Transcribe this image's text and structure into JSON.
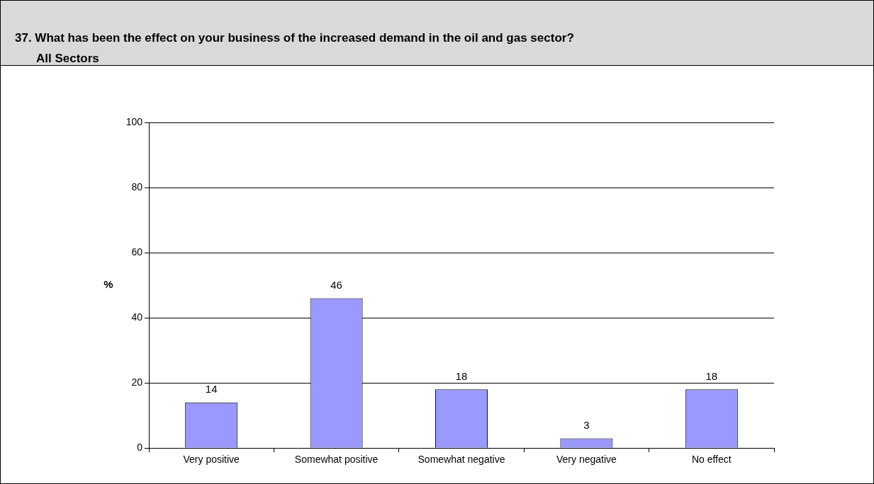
{
  "chart_data": {
    "type": "bar",
    "title": "37.  What has been the effect on your business of the increased demand in the oil and gas sector?",
    "subtitle": "All Sectors",
    "ylabel": "%",
    "categories": [
      "Very positive",
      "Somewhat positive",
      "Somewhat negative",
      "Very negative",
      "No effect"
    ],
    "values": [
      14,
      46,
      18,
      3,
      18
    ],
    "color": "#9999ff",
    "ylim": [
      0,
      100
    ],
    "yticks": [
      0,
      20,
      40,
      60,
      80,
      100
    ],
    "grid": "y",
    "legend": false,
    "data_labels": true
  }
}
